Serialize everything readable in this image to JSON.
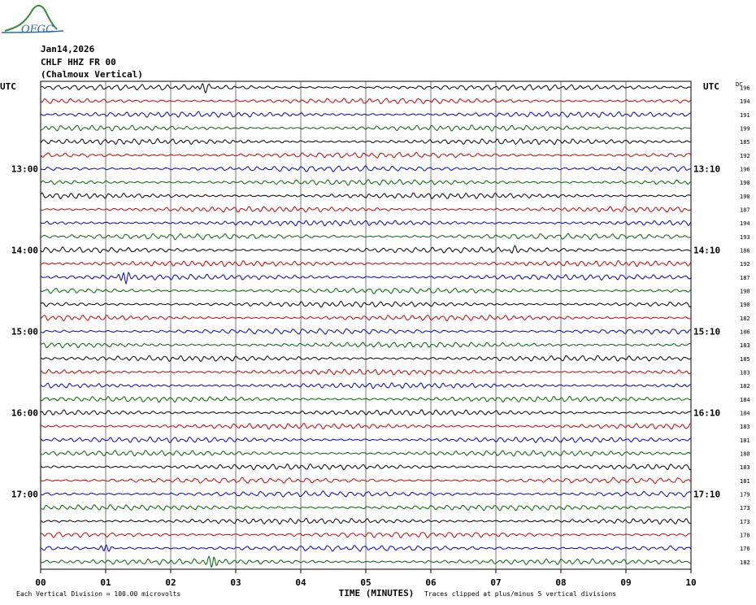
{
  "header": {
    "date": "Jan14,2026",
    "station": "CHLF HHZ FR 00",
    "location": "(Chalmoux Vertical)"
  },
  "chart_data": {
    "type": "line",
    "title": "",
    "xlabel": "TIME (MINUTES)",
    "xlim": [
      0,
      10
    ],
    "x_ticks": [
      "00",
      "01",
      "02",
      "03",
      "04",
      "05",
      "06",
      "07",
      "08",
      "09",
      "10"
    ],
    "left_axis_label": "UTC",
    "right_axis_label": "UTC",
    "dc_label": "DC",
    "left_time_labels": [
      {
        "row": 6,
        "label": "13:00"
      },
      {
        "row": 12,
        "label": "14:00"
      },
      {
        "row": 18,
        "label": "15:00"
      },
      {
        "row": 24,
        "label": "16:00"
      },
      {
        "row": 30,
        "label": "17:00"
      }
    ],
    "right_time_labels": [
      {
        "row": 6,
        "label": "13:10"
      },
      {
        "row": 12,
        "label": "14:10"
      },
      {
        "row": 18,
        "label": "15:10"
      },
      {
        "row": 24,
        "label": "16:10"
      },
      {
        "row": 30,
        "label": "17:10"
      }
    ],
    "trace_colors": [
      "#000000",
      "#cc0000",
      "#0000cc",
      "#006600"
    ],
    "dc_values": [
      196,
      194,
      191,
      199,
      185,
      192,
      196,
      190,
      190,
      187,
      194,
      193,
      186,
      192,
      187,
      190,
      190,
      182,
      186,
      183,
      185,
      183,
      182,
      184,
      184,
      183,
      181,
      180,
      183,
      181,
      179,
      173,
      173,
      178,
      176,
      182
    ],
    "bursts": [
      {
        "row": 0,
        "x": 2.5,
        "amp": 1.8
      },
      {
        "row": 14,
        "x": 1.3,
        "amp": 2.6
      },
      {
        "row": 12,
        "x": 7.25,
        "amp": 1.4
      },
      {
        "row": 34,
        "x": 1.0,
        "amp": 1.6
      },
      {
        "row": 35,
        "x": 2.65,
        "amp": 3.0
      }
    ],
    "footer_left": "Each Vertical Division =  100.00 microvolts",
    "footer_right": "Traces clipped at plus/minus 5 vertical divisions"
  },
  "logo": {
    "text": "OFGC"
  }
}
